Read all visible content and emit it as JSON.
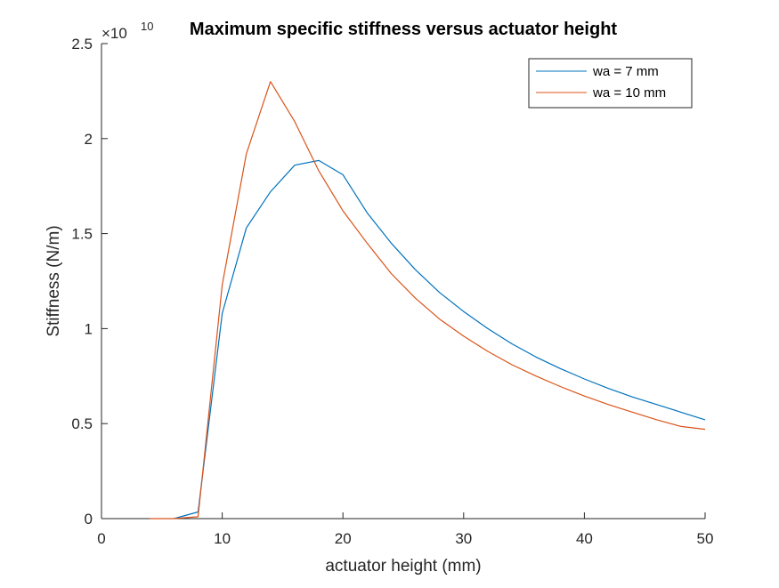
{
  "chart_data": {
    "type": "line",
    "title": "Maximum specific stiffness versus actuator height",
    "xlabel": "actuator height (mm)",
    "ylabel": "Stiffness (N/m)",
    "exponent_base": "×10",
    "exponent_power": "10",
    "xlim": [
      0,
      50
    ],
    "ylim": [
      0,
      2.5
    ],
    "xticks": [
      0,
      10,
      20,
      30,
      40,
      50
    ],
    "xtick_labels": [
      "0",
      "10",
      "20",
      "30",
      "40",
      "50"
    ],
    "yticks": [
      0,
      0.5,
      1,
      1.5,
      2,
      2.5
    ],
    "ytick_labels": [
      "0",
      "0.5",
      "1",
      "1.5",
      "2",
      "2.5"
    ],
    "grid": false,
    "legend_position": "top-right",
    "series": [
      {
        "name": "wa = 7 mm",
        "color": "#0072BD",
        "x": [
          6,
          8,
          10,
          12,
          14,
          16,
          18,
          20,
          22,
          24,
          26,
          28,
          30,
          32,
          34,
          36,
          38,
          40,
          42,
          44,
          46,
          48,
          50
        ],
        "y": [
          0,
          0.035,
          1.08,
          1.53,
          1.72,
          1.86,
          1.885,
          1.81,
          1.61,
          1.45,
          1.31,
          1.19,
          1.09,
          1.0,
          0.92,
          0.85,
          0.79,
          0.735,
          0.685,
          0.64,
          0.6,
          0.56,
          0.52
        ]
      },
      {
        "name": "wa = 10 mm",
        "color": "#D95319",
        "x": [
          4,
          6,
          8,
          10,
          12,
          14,
          16,
          18,
          20,
          22,
          24,
          26,
          28,
          30,
          32,
          34,
          36,
          38,
          40,
          42,
          44,
          46,
          48,
          50
        ],
        "y": [
          0,
          0,
          0.01,
          1.23,
          1.92,
          2.3,
          2.09,
          1.83,
          1.62,
          1.45,
          1.29,
          1.16,
          1.05,
          0.96,
          0.88,
          0.81,
          0.75,
          0.695,
          0.645,
          0.6,
          0.56,
          0.52,
          0.485,
          0.47
        ]
      }
    ]
  }
}
